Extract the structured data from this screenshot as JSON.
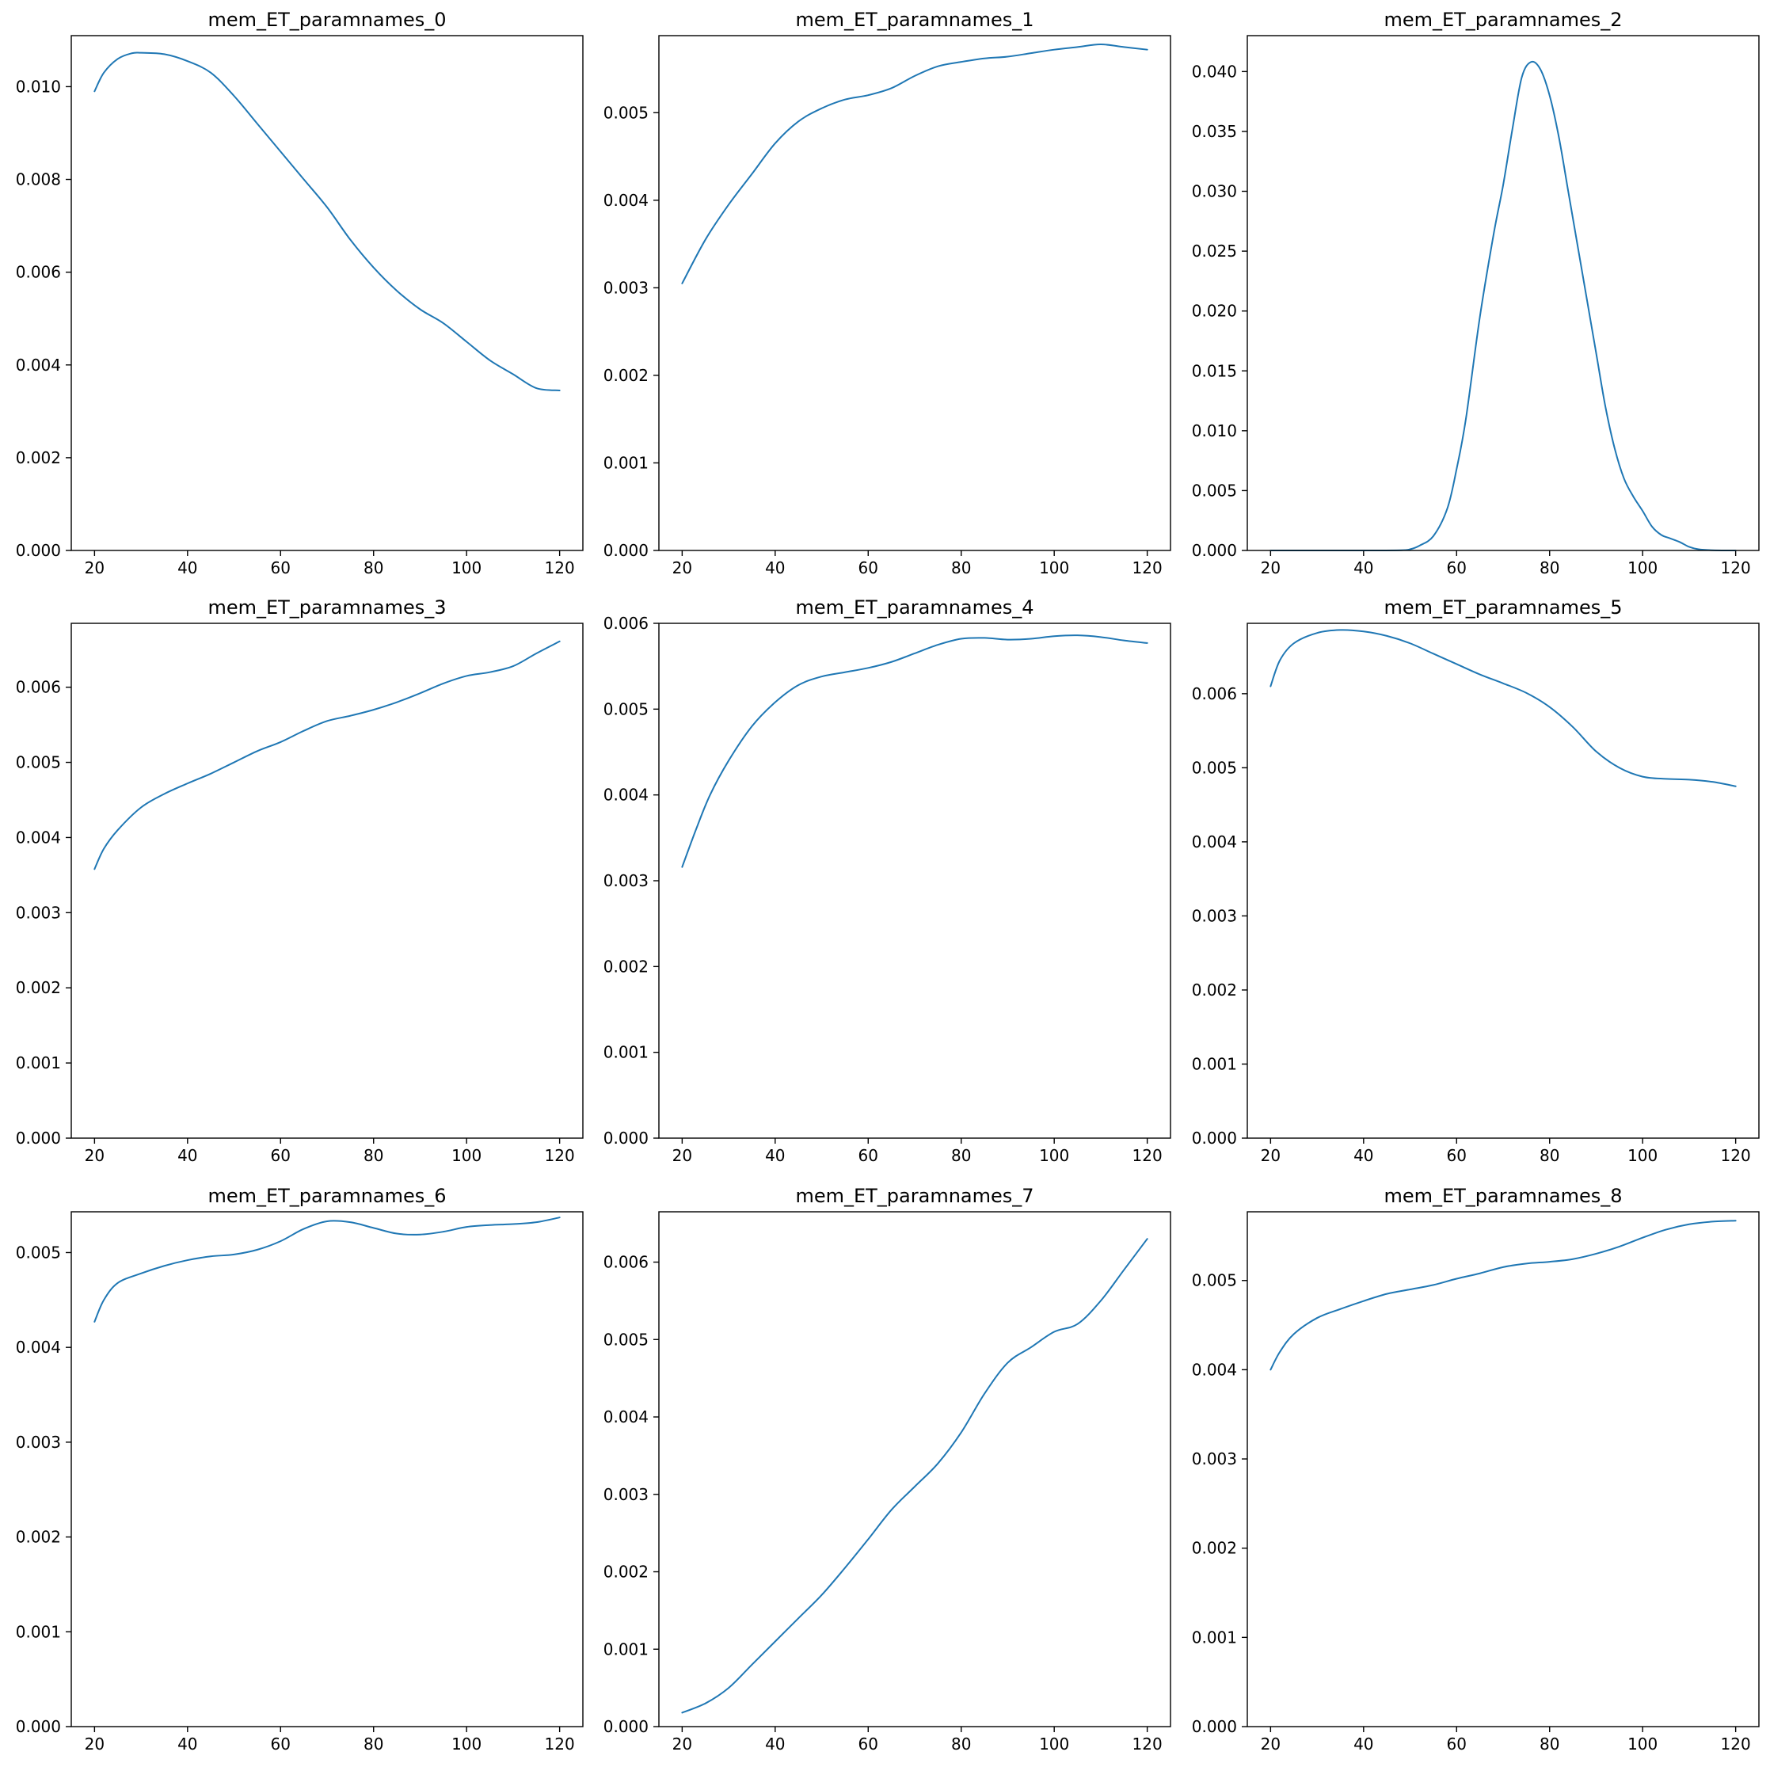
{
  "chart_data": [
    {
      "type": "line",
      "title": "mem_ET_paramnames_0",
      "xlabel": "",
      "ylabel": "",
      "xlim": [
        15,
        125
      ],
      "ylim": [
        0,
        0.0111
      ],
      "xticks": [
        20,
        40,
        60,
        80,
        100,
        120
      ],
      "yticks": [
        0,
        0.002,
        0.004,
        0.006,
        0.008,
        0.01
      ],
      "ytick_decimals": 3,
      "grid": false,
      "series": [
        {
          "color": "#1f77b4",
          "x": [
            20,
            22,
            25,
            28,
            30,
            35,
            40,
            45,
            50,
            55,
            60,
            65,
            70,
            75,
            80,
            85,
            90,
            95,
            100,
            105,
            110,
            115,
            120
          ],
          "y": [
            0.0099,
            0.0103,
            0.0106,
            0.01072,
            0.01073,
            0.0107,
            0.01055,
            0.0103,
            0.0098,
            0.0092,
            0.0086,
            0.008,
            0.0074,
            0.0067,
            0.0061,
            0.0056,
            0.0052,
            0.0049,
            0.0045,
            0.0041,
            0.0038,
            0.0035,
            0.00345
          ]
        }
      ]
    },
    {
      "type": "line",
      "title": "mem_ET_paramnames_1",
      "xlabel": "",
      "ylabel": "",
      "xlim": [
        15,
        125
      ],
      "ylim": [
        0,
        0.00588
      ],
      "xticks": [
        20,
        40,
        60,
        80,
        100,
        120
      ],
      "yticks": [
        0,
        0.001,
        0.002,
        0.003,
        0.004,
        0.005
      ],
      "ytick_decimals": 3,
      "grid": false,
      "series": [
        {
          "color": "#1f77b4",
          "x": [
            20,
            25,
            30,
            35,
            40,
            45,
            50,
            55,
            60,
            65,
            70,
            75,
            80,
            85,
            90,
            95,
            100,
            105,
            110,
            115,
            120
          ],
          "y": [
            0.00305,
            0.00355,
            0.00395,
            0.0043,
            0.00465,
            0.0049,
            0.00505,
            0.00515,
            0.0052,
            0.00528,
            0.00542,
            0.00553,
            0.00558,
            0.00562,
            0.00564,
            0.00568,
            0.00572,
            0.00575,
            0.00578,
            0.00575,
            0.00572
          ]
        }
      ]
    },
    {
      "type": "line",
      "title": "mem_ET_paramnames_2",
      "xlabel": "",
      "ylabel": "",
      "xlim": [
        15,
        125
      ],
      "ylim": [
        0,
        0.043
      ],
      "xticks": [
        20,
        40,
        60,
        80,
        100,
        120
      ],
      "yticks": [
        0,
        0.005,
        0.01,
        0.015,
        0.02,
        0.025,
        0.03,
        0.035,
        0.04
      ],
      "ytick_decimals": 3,
      "grid": false,
      "series": [
        {
          "color": "#1f77b4",
          "x": [
            20,
            30,
            40,
            48,
            50,
            52,
            55,
            58,
            60,
            62,
            65,
            68,
            70,
            72,
            74,
            76,
            78,
            80,
            82,
            84,
            86,
            88,
            90,
            92,
            94,
            96,
            98,
            100,
            102,
            104,
            106,
            108,
            110,
            112,
            115,
            120
          ],
          "y": [
            0,
            0,
            0,
            2e-05,
            0.0001,
            0.0004,
            0.0012,
            0.0035,
            0.0068,
            0.011,
            0.0195,
            0.0265,
            0.0305,
            0.0352,
            0.0395,
            0.0408,
            0.0402,
            0.038,
            0.0345,
            0.03,
            0.0255,
            0.021,
            0.0165,
            0.012,
            0.0085,
            0.006,
            0.0045,
            0.0033,
            0.002,
            0.0013,
            0.001,
            0.0007,
            0.0003,
            0.0001,
            2e-05,
            0
          ]
        }
      ]
    },
    {
      "type": "line",
      "title": "mem_ET_paramnames_3",
      "xlabel": "",
      "ylabel": "",
      "xlim": [
        15,
        125
      ],
      "ylim": [
        0,
        0.00685
      ],
      "xticks": [
        20,
        40,
        60,
        80,
        100,
        120
      ],
      "yticks": [
        0,
        0.001,
        0.002,
        0.003,
        0.004,
        0.005,
        0.006
      ],
      "ytick_decimals": 3,
      "grid": false,
      "series": [
        {
          "color": "#1f77b4",
          "x": [
            20,
            22,
            25,
            30,
            35,
            40,
            45,
            50,
            55,
            60,
            65,
            70,
            75,
            80,
            85,
            90,
            95,
            100,
            105,
            110,
            115,
            120
          ],
          "y": [
            0.00358,
            0.00385,
            0.0041,
            0.0044,
            0.00458,
            0.00472,
            0.00485,
            0.005,
            0.00515,
            0.00527,
            0.00542,
            0.00555,
            0.00562,
            0.0057,
            0.0058,
            0.00592,
            0.00605,
            0.00615,
            0.0062,
            0.00628,
            0.00645,
            0.00661
          ]
        }
      ]
    },
    {
      "type": "line",
      "title": "mem_ET_paramnames_4",
      "xlabel": "",
      "ylabel": "",
      "xlim": [
        15,
        125
      ],
      "ylim": [
        0,
        0.006
      ],
      "xticks": [
        20,
        40,
        60,
        80,
        100,
        120
      ],
      "yticks": [
        0,
        0.001,
        0.002,
        0.003,
        0.004,
        0.005,
        0.006
      ],
      "ytick_decimals": 3,
      "grid": false,
      "series": [
        {
          "color": "#1f77b4",
          "x": [
            20,
            23,
            26,
            30,
            35,
            40,
            45,
            50,
            55,
            60,
            65,
            70,
            75,
            80,
            85,
            90,
            95,
            100,
            105,
            110,
            115,
            120
          ],
          "y": [
            0.00316,
            0.0036,
            0.004,
            0.0044,
            0.0048,
            0.00508,
            0.00528,
            0.00538,
            0.00543,
            0.00548,
            0.00555,
            0.00565,
            0.00575,
            0.00582,
            0.00583,
            0.00581,
            0.00582,
            0.00585,
            0.00586,
            0.00584,
            0.0058,
            0.00577
          ]
        }
      ]
    },
    {
      "type": "line",
      "title": "mem_ET_paramnames_5",
      "xlabel": "",
      "ylabel": "",
      "xlim": [
        15,
        125
      ],
      "ylim": [
        0,
        0.00695
      ],
      "xticks": [
        20,
        40,
        60,
        80,
        100,
        120
      ],
      "yticks": [
        0,
        0.001,
        0.002,
        0.003,
        0.004,
        0.005,
        0.006
      ],
      "ytick_decimals": 3,
      "grid": false,
      "series": [
        {
          "color": "#1f77b4",
          "x": [
            20,
            22,
            25,
            30,
            35,
            40,
            45,
            50,
            55,
            60,
            65,
            70,
            75,
            80,
            85,
            90,
            95,
            100,
            105,
            110,
            115,
            120
          ],
          "y": [
            0.0061,
            0.00645,
            0.00668,
            0.00682,
            0.00686,
            0.00684,
            0.00678,
            0.00668,
            0.00654,
            0.0064,
            0.00626,
            0.00614,
            0.00601,
            0.00582,
            0.00555,
            0.00522,
            0.005,
            0.00488,
            0.00485,
            0.00484,
            0.00481,
            0.00475
          ]
        }
      ]
    },
    {
      "type": "line",
      "title": "mem_ET_paramnames_6",
      "xlabel": "",
      "ylabel": "",
      "xlim": [
        15,
        125
      ],
      "ylim": [
        0,
        0.00543
      ],
      "xticks": [
        20,
        40,
        60,
        80,
        100,
        120
      ],
      "yticks": [
        0,
        0.001,
        0.002,
        0.003,
        0.004,
        0.005
      ],
      "ytick_decimals": 3,
      "grid": false,
      "series": [
        {
          "color": "#1f77b4",
          "x": [
            20,
            22,
            25,
            30,
            35,
            40,
            45,
            50,
            55,
            60,
            65,
            70,
            75,
            80,
            85,
            90,
            95,
            100,
            105,
            110,
            115,
            120
          ],
          "y": [
            0.00427,
            0.0045,
            0.00468,
            0.00478,
            0.00486,
            0.00492,
            0.00496,
            0.00498,
            0.00503,
            0.00512,
            0.00525,
            0.00533,
            0.00532,
            0.00526,
            0.0052,
            0.00519,
            0.00522,
            0.00527,
            0.00529,
            0.0053,
            0.00532,
            0.00537
          ]
        }
      ]
    },
    {
      "type": "line",
      "title": "mem_ET_paramnames_7",
      "xlabel": "",
      "ylabel": "",
      "xlim": [
        15,
        125
      ],
      "ylim": [
        0,
        0.00665
      ],
      "xticks": [
        20,
        40,
        60,
        80,
        100,
        120
      ],
      "yticks": [
        0,
        0.001,
        0.002,
        0.003,
        0.004,
        0.005,
        0.006
      ],
      "ytick_decimals": 3,
      "grid": false,
      "series": [
        {
          "color": "#1f77b4",
          "x": [
            20,
            25,
            30,
            35,
            40,
            45,
            50,
            55,
            60,
            65,
            70,
            75,
            80,
            85,
            90,
            95,
            100,
            105,
            110,
            115,
            120
          ],
          "y": [
            0.00018,
            0.0003,
            0.0005,
            0.0008,
            0.0011,
            0.0014,
            0.0017,
            0.00205,
            0.00242,
            0.0028,
            0.0031,
            0.0034,
            0.0038,
            0.0043,
            0.0047,
            0.0049,
            0.0051,
            0.0052,
            0.0055,
            0.0059,
            0.0063
          ]
        }
      ]
    },
    {
      "type": "line",
      "title": "mem_ET_paramnames_8",
      "xlabel": "",
      "ylabel": "",
      "xlim": [
        15,
        125
      ],
      "ylim": [
        0,
        0.00577
      ],
      "xticks": [
        20,
        40,
        60,
        80,
        100,
        120
      ],
      "yticks": [
        0,
        0.001,
        0.002,
        0.003,
        0.004,
        0.005
      ],
      "ytick_decimals": 3,
      "grid": false,
      "series": [
        {
          "color": "#1f77b4",
          "x": [
            20,
            22,
            25,
            30,
            35,
            40,
            45,
            50,
            55,
            60,
            65,
            70,
            75,
            80,
            85,
            90,
            95,
            100,
            105,
            110,
            115,
            120
          ],
          "y": [
            0.004,
            0.0042,
            0.0044,
            0.00458,
            0.00468,
            0.00477,
            0.00485,
            0.0049,
            0.00495,
            0.00502,
            0.00508,
            0.00515,
            0.00519,
            0.00521,
            0.00524,
            0.0053,
            0.00538,
            0.00548,
            0.00557,
            0.00563,
            0.00566,
            0.00567
          ]
        }
      ]
    }
  ]
}
